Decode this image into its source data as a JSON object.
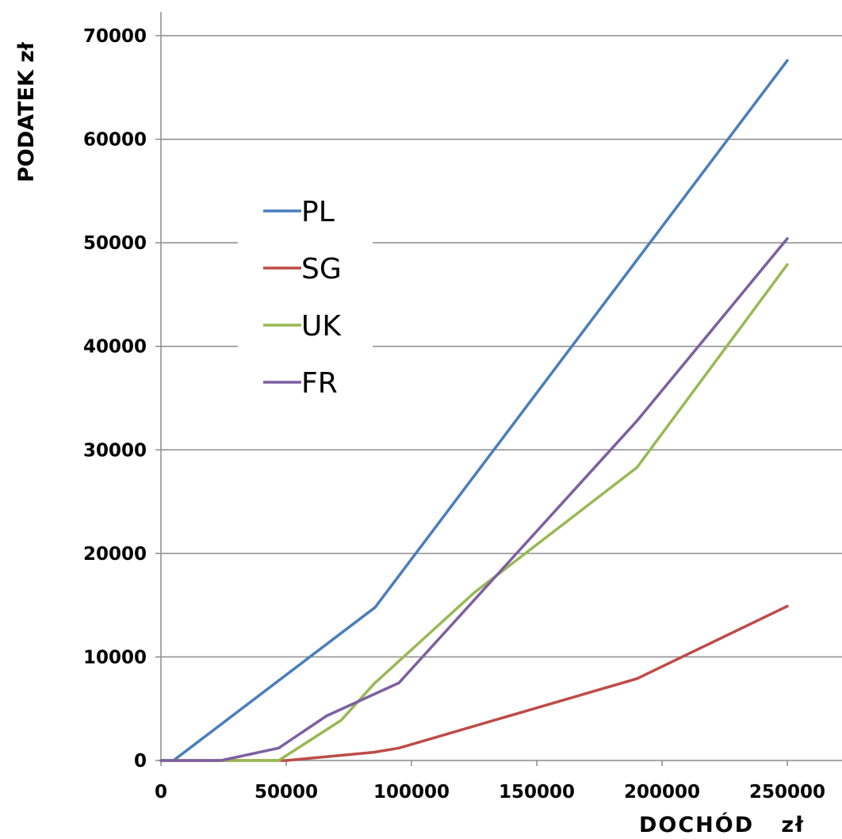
{
  "chart_data": {
    "type": "line",
    "title": "",
    "xlabel": "DOCHÓD   zł",
    "ylabel": "PODATEK zł",
    "xlim": [
      0,
      270000
    ],
    "ylim": [
      0,
      70000
    ],
    "x_ticks": [
      "0",
      "50000",
      "100000",
      "150000",
      "200000",
      "250000"
    ],
    "y_ticks": [
      "0",
      "10000",
      "20000",
      "30000",
      "40000",
      "50000",
      "60000",
      "70000"
    ],
    "grid": "horizontal",
    "legend_position": "upper-left",
    "series": [
      {
        "name": "PL",
        "color": "#4a7ebb",
        "points": [
          [
            3000,
            0
          ],
          [
            5000,
            0
          ],
          [
            85500,
            14800
          ],
          [
            250000,
            67600
          ]
        ]
      },
      {
        "name": "SG",
        "color": "#be4b48",
        "points": [
          [
            0,
            0
          ],
          [
            50000,
            0
          ],
          [
            85000,
            800
          ],
          [
            95000,
            1200
          ],
          [
            190000,
            7900
          ],
          [
            250000,
            14900
          ]
        ]
      },
      {
        "name": "UK",
        "color": "#98b954",
        "points": [
          [
            0,
            0
          ],
          [
            47000,
            0
          ],
          [
            72000,
            3900
          ],
          [
            85000,
            7400
          ],
          [
            125000,
            16200
          ],
          [
            190000,
            28300
          ],
          [
            250000,
            47900
          ]
        ]
      },
      {
        "name": "FR",
        "color": "#7d5fa0",
        "points": [
          [
            0,
            0
          ],
          [
            24000,
            0
          ],
          [
            47000,
            1200
          ],
          [
            66000,
            4300
          ],
          [
            95000,
            7500
          ],
          [
            190000,
            32800
          ],
          [
            250000,
            50400
          ]
        ]
      }
    ]
  }
}
